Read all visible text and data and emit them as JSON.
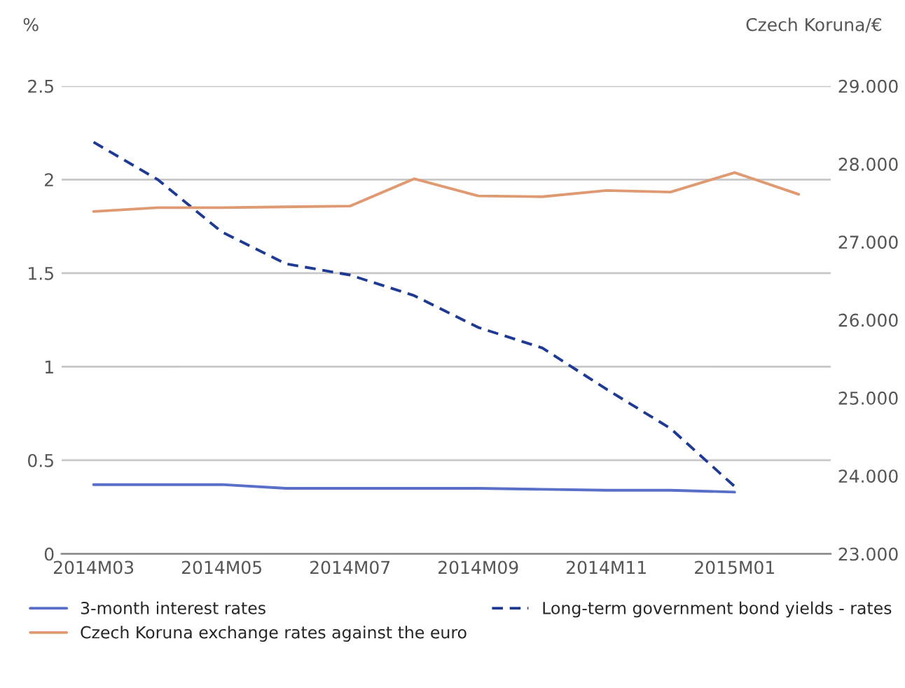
{
  "chart_data": {
    "type": "line",
    "ylabel": "%",
    "y2label": "Czech Koruna/€",
    "categories": [
      "2014M03",
      null,
      "2014M05",
      null,
      "2014M07",
      null,
      "2014M09",
      null,
      "2014M11",
      null,
      "2015M01",
      null
    ],
    "series": [
      {
        "name": "3-month interest rates",
        "color": "#5a6fc8",
        "line_style": "solid",
        "values": [
          0.37,
          0.37,
          0.37,
          0.35,
          0.35,
          0.35,
          0.35,
          0.345,
          0.34,
          0.34,
          0.33,
          null
        ]
      },
      {
        "name": "Long-term government bond yields - rates",
        "color": "#1f3a93",
        "line_style": "dashed",
        "values": [
          2.2,
          2.0,
          1.72,
          1.55,
          1.49,
          1.38,
          1.21,
          1.1,
          0.88,
          0.67,
          0.36,
          null
        ]
      },
      {
        "name": "Czech Koruna exchange rates against the euro",
        "color": "#e09a72",
        "line_style": "solid",
        "axis": "y2",
        "values": [
          27.39,
          27.44,
          27.44,
          27.45,
          27.46,
          27.81,
          27.59,
          27.58,
          27.66,
          27.64,
          27.89,
          27.61
        ]
      }
    ],
    "ylim": [
      0,
      2.5
    ],
    "yticks": [
      0,
      0.5,
      1,
      1.5,
      2,
      2.5
    ],
    "y2lim": [
      23,
      29
    ],
    "y2ticks": [
      {
        "value": 23,
        "label": "23.000"
      },
      {
        "value": 24,
        "label": "24.000"
      },
      {
        "value": 25,
        "label": "25.000"
      },
      {
        "value": 26,
        "label": "26.000"
      },
      {
        "value": 27,
        "label": "27.000"
      },
      {
        "value": 28,
        "label": "28.000"
      },
      {
        "value": 29,
        "label": "29.000"
      }
    ],
    "grid": "y",
    "legend": "bottom"
  }
}
